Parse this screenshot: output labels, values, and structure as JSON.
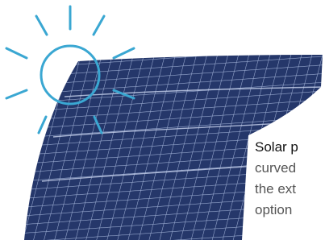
{
  "caption": {
    "title": "Solar p",
    "lines": [
      "curved",
      "the ext",
      "option"
    ]
  }
}
